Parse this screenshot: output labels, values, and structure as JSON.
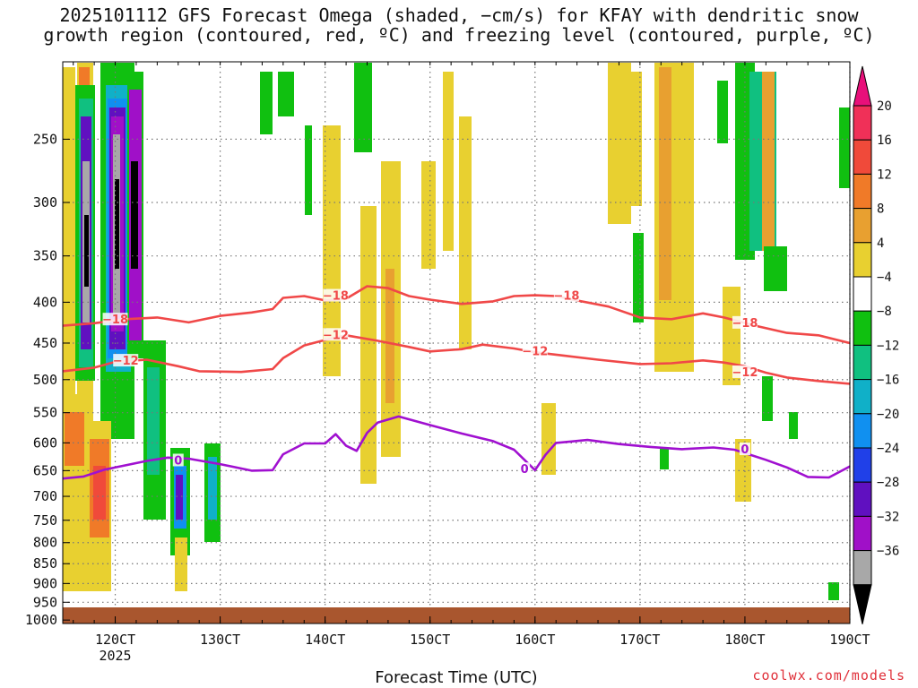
{
  "header": {
    "title_line1": "2025101112 GFS Forecast Omega (shaded, −cm/s) for KFAY with dendritic snow",
    "title_line2": "growth region (contoured, red, ºC) and freezing level (contoured, purple, ºC)"
  },
  "footer": {
    "credit": "coolwx.com/models"
  },
  "colors": {
    "dgz_contour": "#f04848",
    "freezing_contour": "#a010d0",
    "terrain": "#a9562e",
    "grid": "#777777"
  },
  "chart_data": {
    "type": "heatmap",
    "title": "2025101112 GFS Forecast Omega (shaded, −cm/s) for KFAY with dendritic snow growth region (contoured, red, ºC) and freezing level (contoured, purple, ºC)",
    "xlabel": "Forecast Time (UTC)",
    "ylabel": "",
    "x_unit": "hours",
    "xlim": [
      115,
      190
    ],
    "ylim_hpa": [
      1010,
      200
    ],
    "y_scale": "log-pressure",
    "grid": true,
    "x_ticks": [
      {
        "value": 120,
        "label": "120CT",
        "sublabel": "2025"
      },
      {
        "value": 130,
        "label": "130CT",
        "sublabel": ""
      },
      {
        "value": 140,
        "label": "140CT",
        "sublabel": ""
      },
      {
        "value": 150,
        "label": "150CT",
        "sublabel": ""
      },
      {
        "value": 160,
        "label": "160CT",
        "sublabel": ""
      },
      {
        "value": 170,
        "label": "170CT",
        "sublabel": ""
      },
      {
        "value": 180,
        "label": "180CT",
        "sublabel": ""
      },
      {
        "value": 190,
        "label": "190CT",
        "sublabel": ""
      }
    ],
    "y_ticks": [
      {
        "value": 250,
        "label": "250"
      },
      {
        "value": 300,
        "label": "300"
      },
      {
        "value": 350,
        "label": "350"
      },
      {
        "value": 400,
        "label": "400"
      },
      {
        "value": 450,
        "label": "450"
      },
      {
        "value": 500,
        "label": "500"
      },
      {
        "value": 550,
        "label": "550"
      },
      {
        "value": 600,
        "label": "600"
      },
      {
        "value": 650,
        "label": "650"
      },
      {
        "value": 700,
        "label": "700"
      },
      {
        "value": 750,
        "label": "750"
      },
      {
        "value": 800,
        "label": "800"
      },
      {
        "value": 850,
        "label": "850"
      },
      {
        "value": 900,
        "label": "900"
      },
      {
        "value": 950,
        "label": "950"
      },
      {
        "value": 1000,
        "label": "1000"
      }
    ],
    "colorbar": {
      "labels": [
        "20",
        "16",
        "12",
        "8",
        "4",
        "−4",
        "−8",
        "−12",
        "−16",
        "−20",
        "−24",
        "−28",
        "−32",
        "−36"
      ],
      "bins": [
        {
          "color": "#f03058"
        },
        {
          "color": "#f04a3a"
        },
        {
          "color": "#f07a28"
        },
        {
          "color": "#e8a030"
        },
        {
          "color": "#e8d030"
        },
        {
          "color": "#ffffff"
        },
        {
          "color": "#10c010"
        },
        {
          "color": "#10c080"
        },
        {
          "color": "#10b0c8"
        },
        {
          "color": "#1090f0"
        },
        {
          "color": "#2040e8"
        },
        {
          "color": "#6010c0"
        },
        {
          "color": "#a010c8"
        },
        {
          "color": "#a8a8a8"
        }
      ],
      "top_arrow": "#e8107a",
      "bottom_arrow": "#000000"
    },
    "contours": {
      "dgz_minus18": {
        "color": "#f04848",
        "label": "−18",
        "points": [
          [
            115,
            428
          ],
          [
            118,
            425
          ],
          [
            121,
            420
          ],
          [
            124,
            418
          ],
          [
            127,
            424
          ],
          [
            130,
            416
          ],
          [
            133,
            412
          ],
          [
            135,
            408
          ],
          [
            136,
            395
          ],
          [
            138,
            393
          ],
          [
            140,
            398
          ],
          [
            142,
            396
          ],
          [
            144,
            382
          ],
          [
            146,
            384
          ],
          [
            148,
            393
          ],
          [
            150,
            397
          ],
          [
            153,
            402
          ],
          [
            156,
            399
          ],
          [
            158,
            393
          ],
          [
            160,
            392
          ],
          [
            162,
            393
          ],
          [
            164,
            398
          ],
          [
            167,
            405
          ],
          [
            170,
            418
          ],
          [
            173,
            420
          ],
          [
            176,
            413
          ],
          [
            178,
            418
          ],
          [
            181,
            428
          ],
          [
            184,
            437
          ],
          [
            187,
            440
          ],
          [
            190,
            450
          ]
        ],
        "labels_at": [
          [
            120,
            421
          ],
          [
            141,
            393
          ],
          [
            163,
            393
          ],
          [
            180,
            425
          ]
        ]
      },
      "dgz_minus12": {
        "color": "#f04848",
        "label": "−12",
        "points": [
          [
            115,
            488
          ],
          [
            118,
            483
          ],
          [
            120,
            475
          ],
          [
            123,
            472
          ],
          [
            126,
            481
          ],
          [
            128,
            488
          ],
          [
            132,
            489
          ],
          [
            135,
            485
          ],
          [
            136,
            470
          ],
          [
            138,
            453
          ],
          [
            140,
            446
          ],
          [
            142,
            440
          ],
          [
            145,
            447
          ],
          [
            148,
            455
          ],
          [
            150,
            461
          ],
          [
            153,
            458
          ],
          [
            155,
            452
          ],
          [
            158,
            457
          ],
          [
            160,
            462
          ],
          [
            163,
            467
          ],
          [
            166,
            472
          ],
          [
            170,
            478
          ],
          [
            173,
            477
          ],
          [
            176,
            473
          ],
          [
            178,
            476
          ],
          [
            180,
            481
          ],
          [
            182,
            490
          ],
          [
            184,
            497
          ],
          [
            187,
            502
          ],
          [
            190,
            506
          ]
        ],
        "labels_at": [
          [
            121,
            474
          ],
          [
            141,
            440
          ],
          [
            160,
            461
          ],
          [
            180,
            490
          ]
        ]
      },
      "freezing_level": {
        "color": "#a010d0",
        "label": "0",
        "points": [
          [
            115,
            665
          ],
          [
            117,
            661
          ],
          [
            119,
            648
          ],
          [
            121,
            640
          ],
          [
            123,
            632
          ],
          [
            125,
            626
          ],
          [
            127,
            628
          ],
          [
            130,
            638
          ],
          [
            133,
            650
          ],
          [
            135,
            649
          ],
          [
            136,
            620
          ],
          [
            138,
            601
          ],
          [
            140,
            601
          ],
          [
            141,
            585
          ],
          [
            142,
            605
          ],
          [
            143,
            614
          ],
          [
            144,
            583
          ],
          [
            145,
            566
          ],
          [
            147,
            556
          ],
          [
            150,
            570
          ],
          [
            153,
            584
          ],
          [
            156,
            597
          ],
          [
            158,
            612
          ],
          [
            160,
            649
          ],
          [
            161,
            621
          ],
          [
            162,
            600
          ],
          [
            165,
            595
          ],
          [
            168,
            602
          ],
          [
            171,
            607
          ],
          [
            174,
            611
          ],
          [
            177,
            608
          ],
          [
            179,
            612
          ],
          [
            182,
            630
          ],
          [
            184,
            644
          ],
          [
            186,
            662
          ],
          [
            188,
            663
          ],
          [
            190,
            642
          ]
        ],
        "labels_at": [
          [
            126,
            632
          ],
          [
            159,
            648
          ],
          [
            180,
            612
          ]
        ]
      }
    }
  }
}
